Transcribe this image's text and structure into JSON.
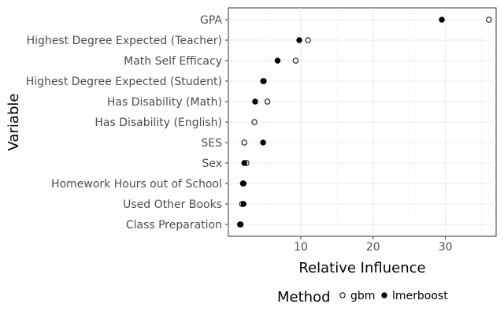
{
  "chart_data": {
    "type": "scatter",
    "xlabel": "Relative Influence",
    "ylabel": "Variable",
    "xlim": [
      0,
      37
    ],
    "xticks": [
      10,
      20,
      30
    ],
    "grid": true,
    "categories": [
      "GPA",
      "Highest Degree Expected (Teacher)",
      "Math Self Efficacy",
      "Highest Degree Expected (Student)",
      "Has Disability (Math)",
      "Has Disability (English)",
      "SES",
      "Sex",
      "Homework Hours out of School",
      "Used Other Books",
      "Class Preparation"
    ],
    "series": [
      {
        "name": "gbm",
        "marker": "open-circle",
        "values": [
          36,
          11,
          9.3,
          4.8,
          5.4,
          3.6,
          2.2,
          2.5,
          2.0,
          1.9,
          1.6
        ]
      },
      {
        "name": "lmerboost",
        "marker": "filled-circle",
        "values": [
          29.5,
          9.8,
          6.8,
          4.9,
          3.7,
          null,
          4.8,
          2.2,
          2.1,
          2.1,
          1.7
        ]
      }
    ],
    "legend": {
      "title": "Method",
      "position": "bottom"
    }
  }
}
